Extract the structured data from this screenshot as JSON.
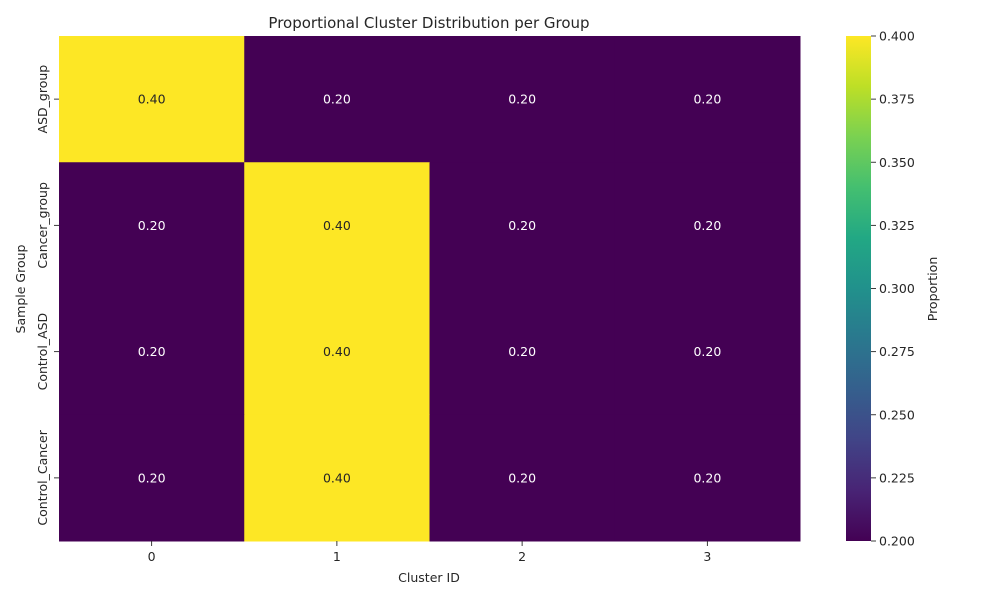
{
  "chart_data": {
    "type": "heatmap",
    "title": "Proportional Cluster Distribution per Group",
    "xlabel": "Cluster ID",
    "ylabel": "Sample Group",
    "x_categories": [
      "0",
      "1",
      "2",
      "3"
    ],
    "y_categories": [
      "ASD_group",
      "Cancer_group",
      "Control_ASD",
      "Control_Cancer"
    ],
    "values": [
      [
        0.4,
        0.2,
        0.2,
        0.2
      ],
      [
        0.2,
        0.4,
        0.2,
        0.2
      ],
      [
        0.2,
        0.4,
        0.2,
        0.2
      ],
      [
        0.2,
        0.4,
        0.2,
        0.2
      ]
    ],
    "cell_labels": [
      [
        "0.40",
        "0.20",
        "0.20",
        "0.20"
      ],
      [
        "0.20",
        "0.40",
        "0.20",
        "0.20"
      ],
      [
        "0.20",
        "0.40",
        "0.20",
        "0.20"
      ],
      [
        "0.20",
        "0.40",
        "0.20",
        "0.20"
      ]
    ],
    "colormap": "viridis",
    "colors": {
      "low": "#440154",
      "high": "#fde725",
      "low_text": "#ffffff",
      "high_text": "#262626"
    },
    "colorbar": {
      "label": "Proportion",
      "range": [
        0.2,
        0.4
      ],
      "ticks": [
        "0.200",
        "0.225",
        "0.250",
        "0.275",
        "0.300",
        "0.325",
        "0.350",
        "0.375",
        "0.400"
      ]
    }
  }
}
